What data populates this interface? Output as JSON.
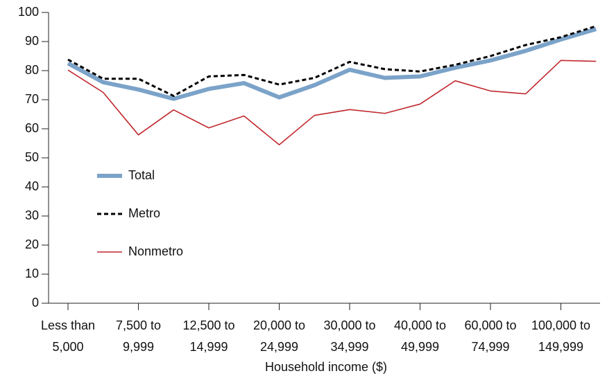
{
  "chart_data": {
    "type": "line",
    "x_label": "Household income ($)",
    "categories": [
      "Less than\n5,000",
      null,
      "7,500 to\n9,999",
      null,
      "12,500 to\n14,999",
      null,
      "20,000 to\n24,999",
      null,
      "30,000 to\n34,999",
      null,
      "40,000 to\n49,999",
      null,
      "60,000 to\n74,999",
      null,
      "100,000 to\n149,999",
      null
    ],
    "series": [
      {
        "name": "Total",
        "color": "#7ba3c9",
        "width": 6,
        "dash": "solid",
        "values": [
          82.5,
          76,
          73.5,
          70.3,
          73.7,
          75.7,
          70.8,
          75,
          80.3,
          77.5,
          78,
          81,
          83.5,
          86.8,
          90.7,
          94.3
        ]
      },
      {
        "name": "Metro",
        "color": "#000000",
        "width": 3,
        "dash": "dashed",
        "values": [
          83.8,
          77.2,
          77.2,
          71.3,
          78,
          78.5,
          75.2,
          77.5,
          83,
          80.5,
          79.7,
          82,
          85,
          88.8,
          91.5,
          95.3
        ]
      },
      {
        "name": "Nonmetro",
        "color": "#c0272d",
        "width": 1.6,
        "dash": "solid",
        "values": [
          80.2,
          72.5,
          57.9,
          66.5,
          60.3,
          64.4,
          54.5,
          64.6,
          66.6,
          65.3,
          68.5,
          76.5,
          73,
          72,
          83.5,
          83.2
        ]
      }
    ],
    "ylim": [
      0,
      100
    ],
    "yticks": [
      0,
      10,
      20,
      30,
      40,
      50,
      60,
      70,
      80,
      90,
      100
    ],
    "grid": false,
    "legend": "center-left"
  }
}
